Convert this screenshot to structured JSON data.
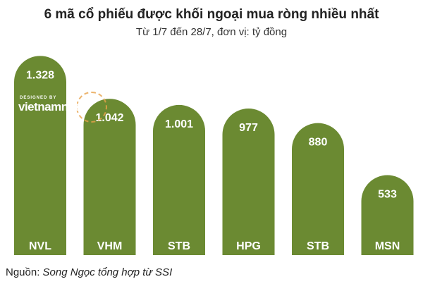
{
  "chart_data": {
    "type": "bar",
    "title": "6 mã cổ phiếu được khối ngoại mua ròng nhiều nhất",
    "subtitle": "Từ 1/7 đến 28/7, đơn vị: tỷ đồng",
    "categories": [
      "NVL",
      "VHM",
      "STB",
      "HPG",
      "STB",
      "MSN"
    ],
    "values": [
      1328,
      1042,
      1001,
      977,
      880,
      533
    ],
    "value_labels": [
      "1.328",
      "1.042",
      "1.001",
      "977",
      "880",
      "533"
    ],
    "ylim": [
      0,
      1400
    ],
    "grid": false,
    "legend": "none",
    "bar_color": "#6b8a32",
    "text_color": "#ffffff"
  },
  "watermark": {
    "small_text": "DESIGNED BY",
    "main_text": "vietnamnet"
  },
  "source": {
    "label": "Nguồn:",
    "text": "Song Ngọc tổng hợp từ SSI"
  }
}
